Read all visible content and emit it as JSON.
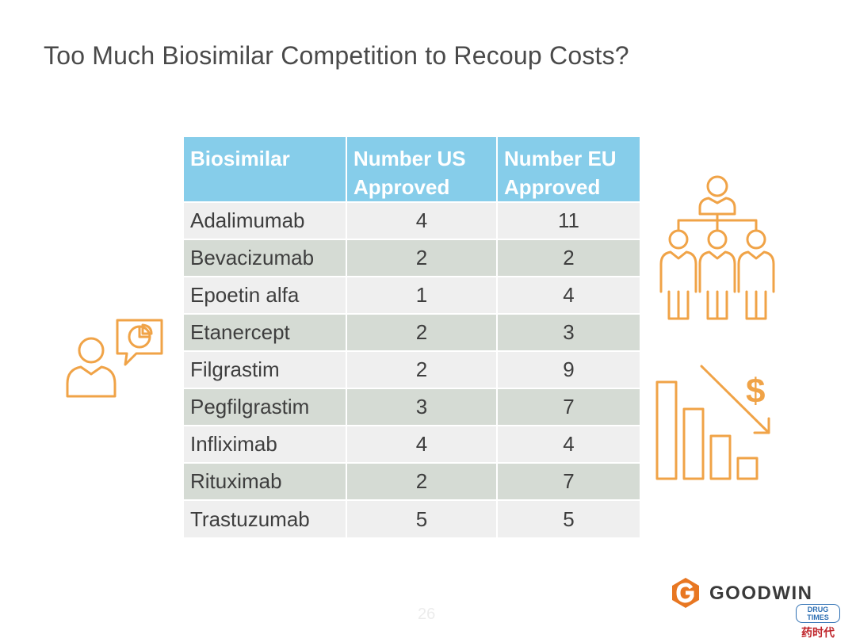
{
  "slide": {
    "title": "Too Much Biosimilar Competition to Recoup Costs?",
    "page_number": "26"
  },
  "table": {
    "headers": [
      "Biosimilar",
      "Number US Approved",
      "Number EU Approved"
    ],
    "rows": [
      {
        "name": "Adalimumab",
        "us": "4",
        "eu": "11"
      },
      {
        "name": "Bevacizumab",
        "us": "2",
        "eu": "2"
      },
      {
        "name": "Epoetin alfa",
        "us": "1",
        "eu": "4"
      },
      {
        "name": "Etanercept",
        "us": "2",
        "eu": "3"
      },
      {
        "name": "Filgrastim",
        "us": "2",
        "eu": "9"
      },
      {
        "name": "Pegfilgrastim",
        "us": "3",
        "eu": "7"
      },
      {
        "name": "Infliximab",
        "us": "4",
        "eu": "4"
      },
      {
        "name": "Rituximab",
        "us": "2",
        "eu": "7"
      },
      {
        "name": "Trastuzumab",
        "us": "5",
        "eu": "5"
      }
    ]
  },
  "icons": {
    "left": "person-speech-pie-chart-icon",
    "top_right": "organization-hierarchy-icon",
    "bottom_right": "declining-cost-chart-icon"
  },
  "logo": {
    "text": "GOODWIN"
  },
  "watermark": {
    "badge": "DRUG TIMES",
    "chinese": "药时代"
  },
  "colors": {
    "header_bg": "#86cdea",
    "row_light": "#efefef",
    "row_dark": "#d5dbd4",
    "icon_orange": "#f0a347",
    "logo_orange": "#e87722"
  }
}
